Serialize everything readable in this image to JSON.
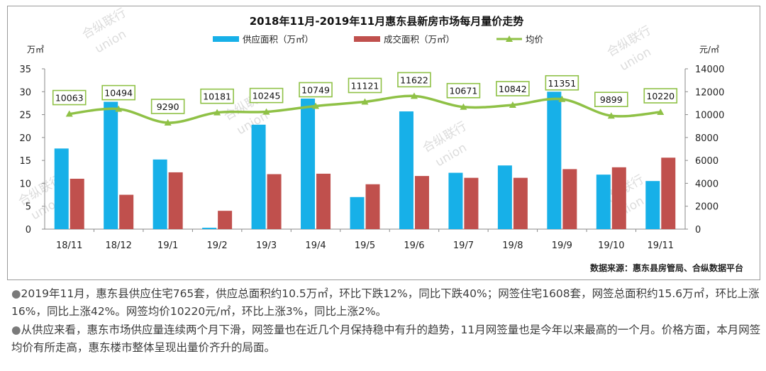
{
  "chart_data": {
    "type": "bar",
    "title": "2018年11月-2019年11月惠东县新房市场每月量价走势",
    "categories": [
      "18/11",
      "18/12",
      "19/1",
      "19/2",
      "19/3",
      "19/4",
      "19/5",
      "19/6",
      "19/7",
      "19/8",
      "19/9",
      "19/10",
      "19/11"
    ],
    "series": [
      {
        "name": "供应面积（万㎡）",
        "type": "bar",
        "axis": "left",
        "color": "#17b0e8",
        "values": [
          17.6,
          27.8,
          15.2,
          0.3,
          22.8,
          28.5,
          7.0,
          25.7,
          12.3,
          13.9,
          30.0,
          11.9,
          10.5
        ]
      },
      {
        "name": "成交面积（万㎡）",
        "type": "bar",
        "axis": "left",
        "color": "#c0504d",
        "values": [
          11.0,
          7.5,
          12.4,
          4.0,
          12.0,
          12.1,
          9.8,
          11.6,
          11.2,
          11.2,
          13.1,
          13.5,
          15.6
        ]
      },
      {
        "name": "均价",
        "type": "line",
        "axis": "right",
        "color": "#8fc146",
        "values": [
          10063,
          10494,
          9290,
          10181,
          10245,
          10749,
          11121,
          11622,
          10671,
          10842,
          11351,
          9899,
          10220
        ]
      }
    ],
    "y_left": {
      "unit": "万㎡",
      "min": 0,
      "max": 35,
      "ticks": [
        "0",
        "5",
        "10",
        "15",
        "20",
        "25",
        "30",
        "35"
      ]
    },
    "y_right": {
      "unit": "元/㎡",
      "min": 0,
      "max": 14000,
      "ticks": [
        "0",
        "2000",
        "4000",
        "6000",
        "8000",
        "10000",
        "12000",
        "14000"
      ]
    },
    "legend_position": "top",
    "source": "数据来源：惠东县房管局、合纵数据平台",
    "watermark": [
      "合纵联行",
      "union"
    ]
  },
  "notes": [
    "2019年11月，惠东县供应住宅765套，供应总面积约10.5万㎡，环比下跌12%，同比下跌40%；网签住宅1608套，网签总面积约15.6万㎡，环比上涨16%，同比上涨42%。网签均价10220元/㎡，环比上涨3%，同比上涨2%。",
    "从供应来看，惠东市场供应量连续两个月下滑，网签量也在近几个月保持稳中有升的趋势，11月网签量也是今年以来最高的一个月。价格方面，本月网签均价有所走高，惠东楼市整体呈现出量价齐升的局面。"
  ],
  "bullet_symbol": "●"
}
